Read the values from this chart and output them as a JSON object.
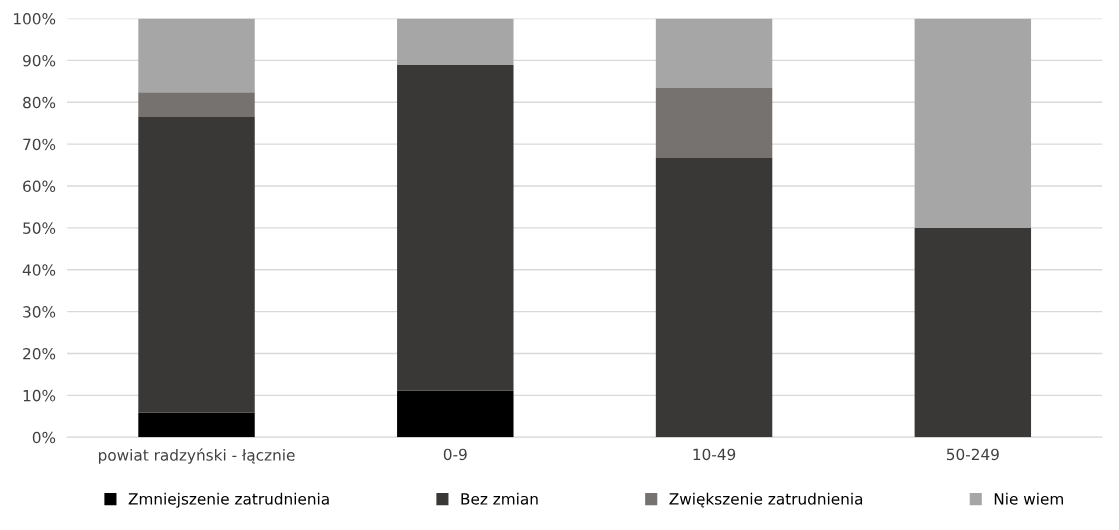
{
  "chart_data": {
    "type": "bar",
    "stacked": true,
    "categories": [
      "powiat radzyński - łącznie",
      "0-9",
      "10-49",
      "50-249"
    ],
    "series": [
      {
        "name": "Zmniejszenie zatrudnienia",
        "color": "#000000",
        "values": [
          5.9,
          11.1,
          0,
          0
        ]
      },
      {
        "name": "Bez zmian",
        "color": "#3a3836",
        "values": [
          70.6,
          77.8,
          66.7,
          50
        ]
      },
      {
        "name": "Zwiększenie zatrudnienia",
        "color": "#767270",
        "values": [
          5.9,
          0,
          16.7,
          0
        ]
      },
      {
        "name": "Nie wiem",
        "color": "#a6a6a6",
        "values": [
          17.6,
          11.1,
          16.6,
          50
        ]
      }
    ],
    "ylim": [
      0,
      100
    ],
    "yticks": [
      {
        "value": 0,
        "label": "0%"
      },
      {
        "value": 10,
        "label": "10%"
      },
      {
        "value": 20,
        "label": "20%"
      },
      {
        "value": 30,
        "label": "30%"
      },
      {
        "value": 40,
        "label": "40%"
      },
      {
        "value": 50,
        "label": "50%"
      },
      {
        "value": 60,
        "label": "60%"
      },
      {
        "value": 70,
        "label": "70%"
      },
      {
        "value": 80,
        "label": "80%"
      },
      {
        "value": 90,
        "label": "90%"
      },
      {
        "value": 100,
        "label": "100%"
      }
    ],
    "grid": "y",
    "legend": "bottom"
  }
}
